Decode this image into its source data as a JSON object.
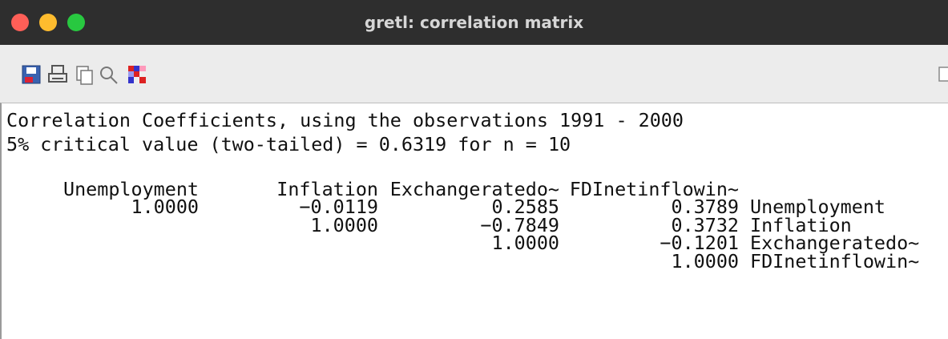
{
  "window": {
    "title": "gretl: correlation matrix"
  },
  "output": {
    "heading": "Correlation Coefficients, using the observations 1991 - 2000",
    "critical": "5% critical value (two-tailed) = 0.6319 for n = 10",
    "columns": [
      "Unemployment",
      "Inflation",
      "Exchangeratedo~",
      "FDInetinflowin~"
    ],
    "rows": [
      {
        "values": [
          "1.0000",
          "−0.0119",
          "0.2585",
          "0.3789"
        ],
        "label": "Unemployment"
      },
      {
        "values": [
          "1.0000",
          "−0.7849",
          "0.3732"
        ],
        "label": "Inflation"
      },
      {
        "values": [
          "1.0000",
          "−0.1201"
        ],
        "label": "Exchangeratedo~"
      },
      {
        "values": [
          "1.0000"
        ],
        "label": "FDInetinflowin~"
      }
    ]
  }
}
